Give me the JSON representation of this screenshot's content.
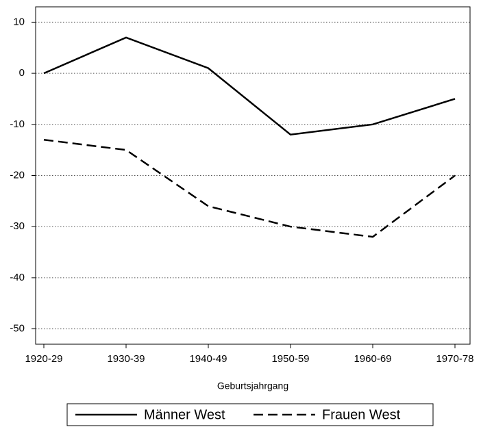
{
  "chart_data": {
    "type": "line",
    "x_label": "Geburtsjahrgang",
    "categories": [
      "1920-29",
      "1930-39",
      "1940-49",
      "1950-59",
      "1960-69",
      "1970-78"
    ],
    "series": [
      {
        "name": "Männer West",
        "color": "#000000",
        "dash": "solid",
        "values": [
          0,
          7,
          1,
          -12,
          -10,
          -5
        ]
      },
      {
        "name": "Frauen West",
        "color": "#000000",
        "dash": "dashed",
        "values": [
          -13,
          -15,
          -26,
          -30,
          -32,
          -20
        ]
      }
    ],
    "ylim": [
      -53,
      13
    ],
    "yticks": [
      10,
      0,
      -10,
      -20,
      -30,
      -40,
      -50
    ],
    "grid": true
  }
}
